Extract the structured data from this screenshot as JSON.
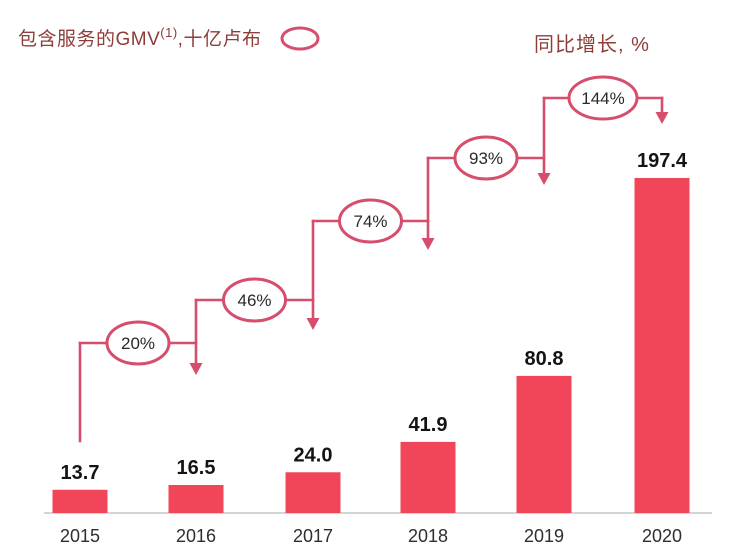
{
  "header": {
    "left_title": "包含服务的GMV",
    "left_title_sup": "(1)",
    "left_title_tail": ",十亿卢布",
    "right_title": "同比增长, %"
  },
  "colors": {
    "bar": "#F1455A",
    "connector": "#D64E6C",
    "ellipse_fill": "#FFFFFF",
    "title_text": "#8F3D39",
    "value_text": "#141414",
    "year_text": "#2E2E2E",
    "growth_text": "#2A2A2A",
    "axis": "#BBBBBB"
  },
  "chart_data": {
    "type": "bar",
    "title": "包含服务的GMV(1), 十亿卢布",
    "growth_series_name": "同比增长, %",
    "categories": [
      "2015",
      "2016",
      "2017",
      "2018",
      "2019",
      "2020"
    ],
    "values": [
      13.7,
      16.5,
      24.0,
      41.9,
      80.8,
      197.4
    ],
    "value_labels": [
      "13.7",
      "16.5",
      "24.0",
      "41.9",
      "80.8",
      "197.4"
    ],
    "growth_percent": [
      20,
      46,
      74,
      93,
      144
    ],
    "growth_labels": [
      "20%",
      "46%",
      "74%",
      "93%",
      "144%"
    ],
    "ylim": [
      0,
      210
    ],
    "grid": false,
    "legend_position": "top"
  }
}
